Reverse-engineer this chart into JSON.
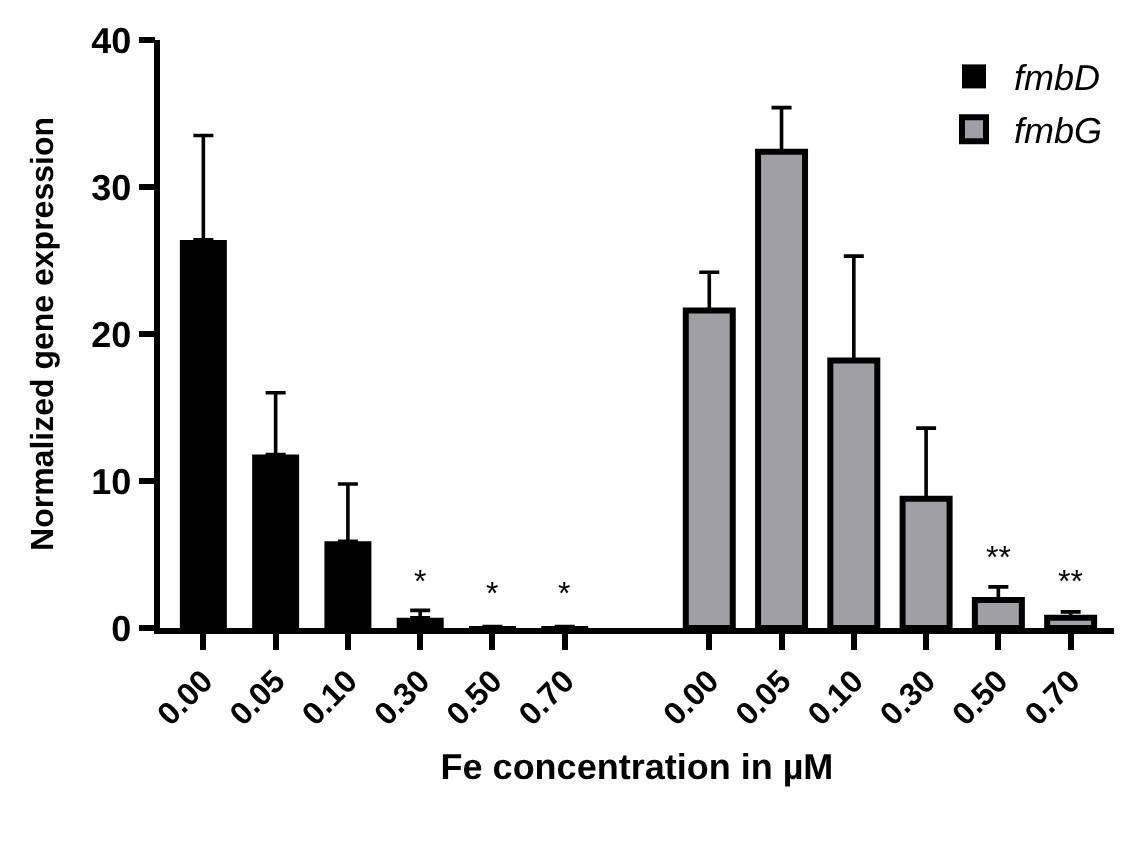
{
  "chart_data": {
    "type": "bar",
    "xlabel": "Fe concentration in µM",
    "ylabel": "Normalized gene expression",
    "categories": [
      "0.00",
      "0.05",
      "0.10",
      "0.30",
      "0.50",
      "0.70",
      null,
      "0.00",
      "0.05",
      "0.10",
      "0.30",
      "0.50",
      "0.70"
    ],
    "series": [
      {
        "name": "fmbD",
        "color": "#000000",
        "values": [
          26.4,
          11.8,
          5.9,
          0.7,
          0.1,
          0.1,
          null,
          null,
          null,
          null,
          null,
          null,
          null
        ],
        "errors": [
          [
            26.4,
            33.5
          ],
          [
            11.8,
            16.0
          ],
          [
            5.9,
            9.8
          ],
          [
            0.7,
            1.2
          ],
          null,
          null,
          null,
          null,
          null,
          null,
          null,
          null,
          null
        ]
      },
      {
        "name": "fmbG",
        "color": "#a0a0a4",
        "values": [
          null,
          null,
          null,
          null,
          null,
          null,
          null,
          21.6,
          32.4,
          18.2,
          8.8,
          1.9,
          0.7
        ],
        "errors": [
          null,
          null,
          null,
          null,
          null,
          null,
          null,
          [
            21.6,
            24.2
          ],
          [
            32.4,
            35.4
          ],
          [
            18.2,
            25.3
          ],
          [
            8.8,
            13.6
          ],
          [
            1.9,
            2.8
          ],
          [
            0.7,
            1.1
          ]
        ]
      }
    ],
    "annotations": [
      "*",
      "*",
      "*",
      "**",
      "**"
    ],
    "ylim": [
      0,
      40
    ],
    "yticks": [
      0,
      10,
      20,
      30,
      40
    ],
    "legend": "top right"
  }
}
